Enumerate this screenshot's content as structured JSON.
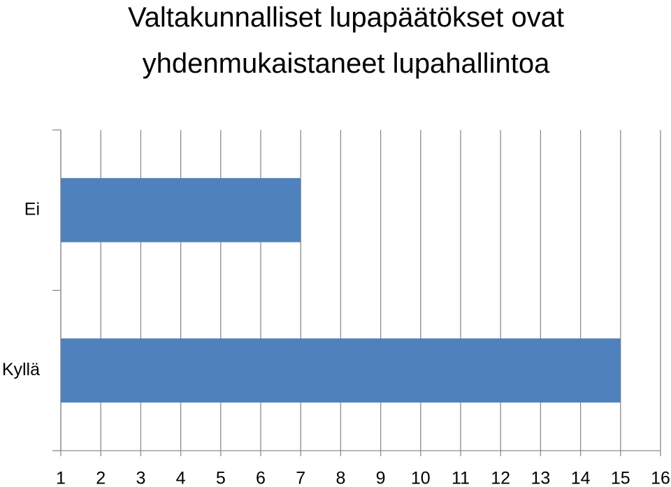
{
  "chart_data": {
    "type": "bar",
    "orientation": "horizontal",
    "title": "Valtakunnalliset lupapäätökset ovat\nyhdenmukaistaneet lupahallintoa",
    "categories": [
      "Ei",
      "Kyllä"
    ],
    "values": [
      7,
      15
    ],
    "color": "#4f81bd",
    "xlim": [
      1,
      16
    ],
    "xticks": [
      1,
      2,
      3,
      4,
      5,
      6,
      7,
      8,
      9,
      10,
      11,
      12,
      13,
      14,
      15,
      16
    ],
    "grid": true
  }
}
